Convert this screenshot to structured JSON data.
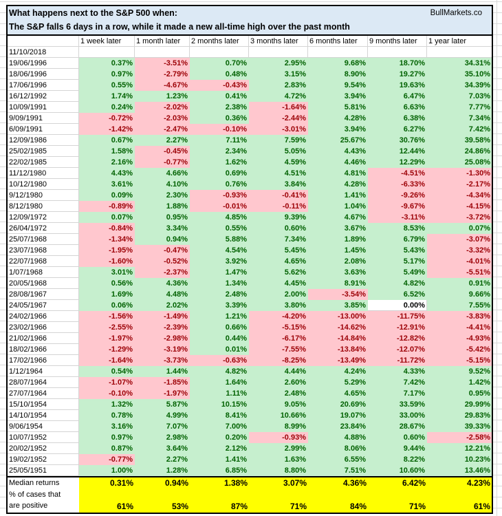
{
  "title": {
    "line1": "What happens next to the S&P 500 when:",
    "line2": "The S&P falls 6 days in a row, while it made a new all-time high over the past month",
    "brand": "BullMarkets.co"
  },
  "colors": {
    "title_bg": "#dce9f5",
    "positive_bg": "#c6efce",
    "positive_text": "#006100",
    "negative_bg": "#ffc7ce",
    "negative_text": "#9c0006",
    "summary_bg": "#ffff00"
  },
  "headers": [
    "",
    "1 week later",
    "1 month later",
    "2 months later",
    "3 months later",
    "6 months later",
    "9 months later",
    "1 year later"
  ],
  "current_date": "11/10/2018",
  "rows": [
    {
      "date": "19/06/1996",
      "values": [
        "0.37%",
        "-3.51%",
        "0.70%",
        "2.95%",
        "9.68%",
        "18.70%",
        "34.31%"
      ]
    },
    {
      "date": "18/06/1996",
      "values": [
        "0.97%",
        "-2.79%",
        "0.48%",
        "3.15%",
        "8.90%",
        "19.27%",
        "35.10%"
      ]
    },
    {
      "date": "17/06/1996",
      "values": [
        "0.55%",
        "-4.67%",
        "-0.43%",
        "2.83%",
        "9.54%",
        "19.63%",
        "34.39%"
      ]
    },
    {
      "date": "16/12/1992",
      "values": [
        "1.74%",
        "1.23%",
        "0.41%",
        "4.72%",
        "3.94%",
        "6.47%",
        "7.03%"
      ]
    },
    {
      "date": "10/09/1991",
      "values": [
        "0.24%",
        "-2.02%",
        "2.38%",
        "-1.64%",
        "5.81%",
        "6.63%",
        "7.77%"
      ]
    },
    {
      "date": "9/09/1991",
      "values": [
        "-0.72%",
        "-2.03%",
        "0.36%",
        "-2.44%",
        "4.28%",
        "6.38%",
        "7.34%"
      ]
    },
    {
      "date": "6/09/1991",
      "values": [
        "-1.42%",
        "-2.47%",
        "-0.10%",
        "-3.01%",
        "3.94%",
        "6.27%",
        "7.42%"
      ]
    },
    {
      "date": "12/09/1986",
      "values": [
        "0.67%",
        "2.27%",
        "7.11%",
        "7.59%",
        "25.67%",
        "30.76%",
        "39.58%"
      ]
    },
    {
      "date": "25/02/1985",
      "values": [
        "1.58%",
        "-0.45%",
        "2.34%",
        "5.05%",
        "4.43%",
        "12.44%",
        "24.86%"
      ]
    },
    {
      "date": "22/02/1985",
      "values": [
        "2.16%",
        "-0.77%",
        "1.62%",
        "4.59%",
        "4.46%",
        "12.29%",
        "25.08%"
      ]
    },
    {
      "date": "11/12/1980",
      "values": [
        "4.43%",
        "4.66%",
        "0.69%",
        "4.51%",
        "4.81%",
        "-4.51%",
        "-1.30%"
      ]
    },
    {
      "date": "10/12/1980",
      "values": [
        "3.61%",
        "4.10%",
        "0.76%",
        "3.84%",
        "4.28%",
        "-6.33%",
        "-2.17%"
      ]
    },
    {
      "date": "9/12/1980",
      "values": [
        "0.09%",
        "2.30%",
        "-0.93%",
        "-0.41%",
        "1.41%",
        "-9.26%",
        "-4.34%"
      ]
    },
    {
      "date": "8/12/1980",
      "values": [
        "-0.89%",
        "1.88%",
        "-0.01%",
        "-0.11%",
        "1.04%",
        "-9.67%",
        "-4.15%"
      ]
    },
    {
      "date": "12/09/1972",
      "values": [
        "0.07%",
        "0.95%",
        "4.85%",
        "9.39%",
        "4.67%",
        "-3.11%",
        "-3.72%"
      ]
    },
    {
      "date": "26/04/1972",
      "values": [
        "-0.84%",
        "3.34%",
        "0.55%",
        "0.60%",
        "3.67%",
        "8.53%",
        "0.07%"
      ]
    },
    {
      "date": "25/07/1968",
      "values": [
        "-1.34%",
        "0.94%",
        "5.88%",
        "7.34%",
        "1.89%",
        "6.79%",
        "-3.07%"
      ]
    },
    {
      "date": "23/07/1968",
      "values": [
        "-1.95%",
        "-0.47%",
        "4.54%",
        "5.45%",
        "1.45%",
        "5.43%",
        "-3.32%"
      ]
    },
    {
      "date": "22/07/1968",
      "values": [
        "-1.60%",
        "-0.52%",
        "3.92%",
        "4.65%",
        "2.08%",
        "5.17%",
        "-4.01%"
      ]
    },
    {
      "date": "1/07/1968",
      "values": [
        "3.01%",
        "-2.37%",
        "1.47%",
        "5.62%",
        "3.63%",
        "5.49%",
        "-5.51%"
      ]
    },
    {
      "date": "20/05/1968",
      "values": [
        "0.56%",
        "4.36%",
        "1.34%",
        "4.45%",
        "8.91%",
        "4.82%",
        "0.91%"
      ]
    },
    {
      "date": "28/08/1967",
      "values": [
        "1.69%",
        "4.48%",
        "2.48%",
        "2.00%",
        "-3.54%",
        "6.52%",
        "9.66%"
      ]
    },
    {
      "date": "24/05/1967",
      "values": [
        "0.06%",
        "2.02%",
        "3.39%",
        "3.80%",
        "3.85%",
        "0.00%",
        "7.55%"
      ]
    },
    {
      "date": "24/02/1966",
      "values": [
        "-1.56%",
        "-1.49%",
        "1.21%",
        "-4.20%",
        "-13.00%",
        "-11.75%",
        "-3.83%"
      ]
    },
    {
      "date": "23/02/1966",
      "values": [
        "-2.55%",
        "-2.39%",
        "0.66%",
        "-5.15%",
        "-14.62%",
        "-12.91%",
        "-4.41%"
      ]
    },
    {
      "date": "21/02/1966",
      "values": [
        "-1.97%",
        "-2.98%",
        "0.44%",
        "-6.17%",
        "-14.84%",
        "-12.82%",
        "-4.93%"
      ]
    },
    {
      "date": "18/02/1966",
      "values": [
        "-1.29%",
        "-3.19%",
        "0.01%",
        "-7.55%",
        "-13.84%",
        "-12.07%",
        "-5.42%"
      ]
    },
    {
      "date": "17/02/1966",
      "values": [
        "-1.64%",
        "-3.73%",
        "-0.63%",
        "-8.25%",
        "-13.49%",
        "-11.72%",
        "-5.15%"
      ]
    },
    {
      "date": "1/12/1964",
      "values": [
        "0.54%",
        "1.44%",
        "4.82%",
        "4.44%",
        "4.24%",
        "4.33%",
        "9.52%"
      ]
    },
    {
      "date": "28/07/1964",
      "values": [
        "-1.07%",
        "-1.85%",
        "1.64%",
        "2.60%",
        "5.29%",
        "7.42%",
        "1.42%"
      ]
    },
    {
      "date": "27/07/1964",
      "values": [
        "-0.10%",
        "-1.97%",
        "1.11%",
        "2.48%",
        "4.65%",
        "7.17%",
        "0.95%"
      ]
    },
    {
      "date": "15/10/1954",
      "values": [
        "1.32%",
        "5.87%",
        "10.15%",
        "9.05%",
        "20.69%",
        "33.59%",
        "29.99%"
      ]
    },
    {
      "date": "14/10/1954",
      "values": [
        "0.78%",
        "4.99%",
        "8.41%",
        "10.66%",
        "19.07%",
        "33.00%",
        "29.83%"
      ]
    },
    {
      "date": "9/06/1954",
      "values": [
        "3.16%",
        "7.07%",
        "7.00%",
        "8.99%",
        "23.84%",
        "28.67%",
        "39.33%"
      ]
    },
    {
      "date": "10/07/1952",
      "values": [
        "0.97%",
        "2.98%",
        "0.20%",
        "-0.93%",
        "4.88%",
        "0.60%",
        "-2.58%"
      ]
    },
    {
      "date": "20/02/1952",
      "values": [
        "0.87%",
        "3.64%",
        "2.12%",
        "2.99%",
        "8.06%",
        "9.44%",
        "12.21%"
      ]
    },
    {
      "date": "19/02/1952",
      "values": [
        "-0.77%",
        "2.27%",
        "1.41%",
        "1.63%",
        "6.55%",
        "8.22%",
        "10.23%"
      ]
    },
    {
      "date": "25/05/1951",
      "values": [
        "1.00%",
        "1.28%",
        "6.85%",
        "8.80%",
        "7.51%",
        "10.60%",
        "13.46%"
      ]
    }
  ],
  "summary": {
    "median_label": "Median returns",
    "median_values": [
      "0.31%",
      "0.94%",
      "1.38%",
      "3.07%",
      "4.36%",
      "6.42%",
      "4.23%"
    ],
    "positive_label_line1": "% of cases that",
    "positive_label_line2": "are positive",
    "positive_values": [
      "61%",
      "53%",
      "87%",
      "71%",
      "84%",
      "71%",
      "61%"
    ]
  }
}
